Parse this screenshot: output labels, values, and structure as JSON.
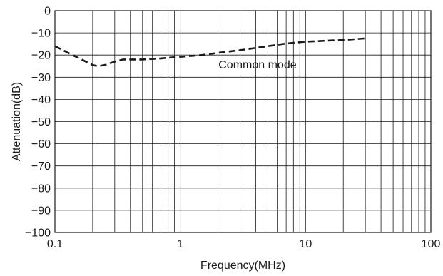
{
  "chart_data": {
    "type": "line",
    "title": "",
    "xlabel": "Frequency(MHz)",
    "ylabel": "Attenuation(dB)",
    "x_scale": "log",
    "xlim": [
      0.1,
      100
    ],
    "ylim": [
      -100,
      0
    ],
    "x_ticks": [
      0.1,
      1,
      10,
      100
    ],
    "x_tick_labels": [
      "0.1",
      "1",
      "10",
      "100"
    ],
    "y_ticks": [
      0,
      -10,
      -20,
      -30,
      -40,
      -50,
      -60,
      -70,
      -80,
      -90,
      -100
    ],
    "y_tick_labels": [
      "0",
      "−10",
      "−20",
      "−30",
      "−40",
      "−50",
      "−60",
      "−70",
      "−80",
      "−90",
      "−100"
    ],
    "grid": true,
    "series": [
      {
        "name": "Common mode",
        "line_style": "dashed",
        "color": "#1a1a1a",
        "x": [
          0.1,
          0.15,
          0.2,
          0.22,
          0.25,
          0.3,
          0.35,
          0.5,
          0.7,
          1,
          1.5,
          2,
          3,
          5,
          7,
          10,
          15,
          20,
          30
        ],
        "y": [
          -16,
          -21,
          -24.5,
          -25,
          -24.5,
          -23,
          -22,
          -22,
          -21.5,
          -20.8,
          -20,
          -19,
          -17.8,
          -16,
          -14.8,
          -14,
          -13.5,
          -13.2,
          -12.5
        ]
      }
    ],
    "annotations": [
      {
        "text": "Common mode",
        "x": 3.5,
        "y": -24.5
      }
    ]
  }
}
